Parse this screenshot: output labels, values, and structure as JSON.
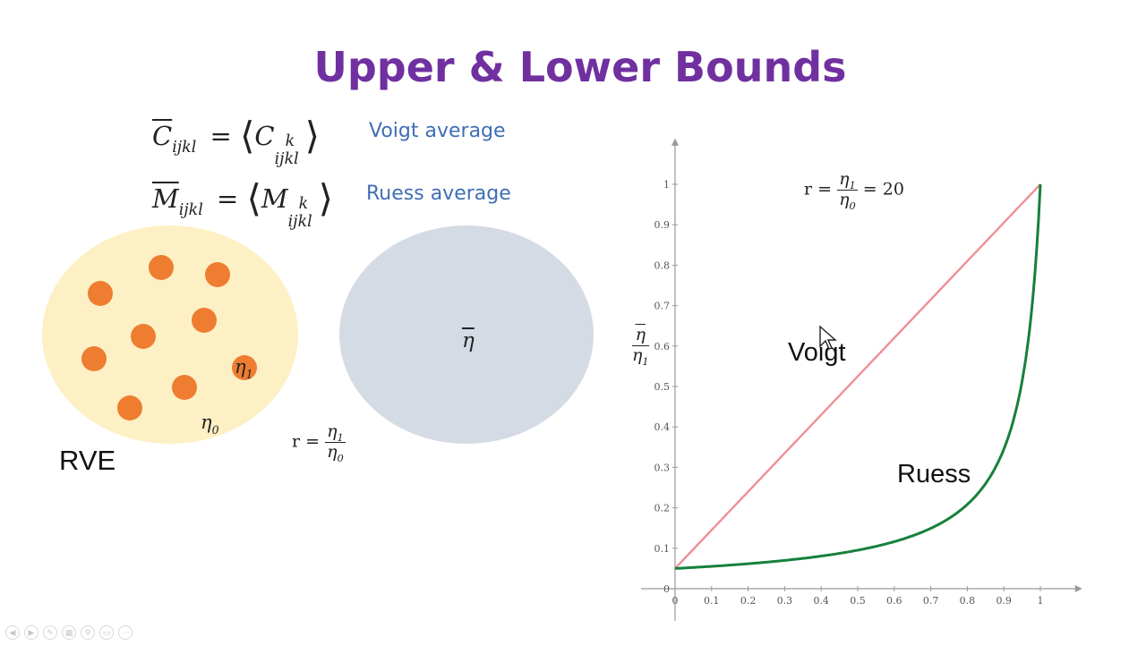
{
  "title": "Upper & Lower Bounds",
  "equations": {
    "voigt": {
      "lhs_symbol": "C",
      "lhs_sub": "ijkl",
      "rhs_symbol": "C",
      "rhs_sub": "ijkl",
      "rhs_sup": "k",
      "label": "Voigt average"
    },
    "ruess": {
      "lhs_symbol": "M",
      "lhs_sub": "ijkl",
      "rhs_symbol": "M",
      "rhs_sub": "ijkl",
      "rhs_sup": "k",
      "label": "Ruess average"
    }
  },
  "rve": {
    "label": "RVE",
    "matrix_symbol": "η",
    "matrix_sub": "0",
    "inclusion_symbol": "η",
    "inclusion_sub": "1",
    "matrix_color": "#fdf0c4",
    "inclusion_color": "#ee7d31"
  },
  "homogenized": {
    "symbol": "η",
    "color": "#d5dbe5"
  },
  "ratio_def": {
    "lhs": "r =",
    "num_symbol": "η",
    "num_sub": "1",
    "den_symbol": "η",
    "den_sub": "0"
  },
  "chart_data": {
    "type": "line",
    "annotation": {
      "lhs": "r =",
      "num_symbol": "η",
      "num_sub": "1",
      "den_symbol": "η",
      "den_sub": "0",
      "rhs": "= 20"
    },
    "xlabel": "",
    "ylabel": {
      "num_symbol": "η",
      "den_symbol": "η",
      "den_sub": "1"
    },
    "xlim": [
      0,
      1.1
    ],
    "ylim": [
      0,
      1.1
    ],
    "xticks": [
      "0",
      "0.1",
      "0.2",
      "0.3",
      "0.4",
      "0.5",
      "0.6",
      "0.7",
      "0.8",
      "0.9",
      "1"
    ],
    "yticks": [
      "0",
      "0.1",
      "0.2",
      "0.3",
      "0.4",
      "0.5",
      "0.6",
      "0.7",
      "0.8",
      "0.9",
      "1"
    ],
    "series": [
      {
        "name": "Voigt",
        "color": "#ee8f96",
        "x": [
          0,
          1
        ],
        "y": [
          0.05,
          1.0
        ]
      },
      {
        "name": "Ruess",
        "color": "#17803c",
        "x": [
          0,
          0.1,
          0.2,
          0.3,
          0.4,
          0.5,
          0.6,
          0.7,
          0.8,
          0.85,
          0.9,
          0.95,
          0.97,
          0.99,
          1
        ],
        "y": [
          0.05,
          0.055,
          0.061,
          0.069,
          0.08,
          0.095,
          0.116,
          0.149,
          0.208,
          0.26,
          0.345,
          0.513,
          0.635,
          0.844,
          1.0
        ]
      }
    ],
    "grid": false,
    "legend": "none"
  }
}
